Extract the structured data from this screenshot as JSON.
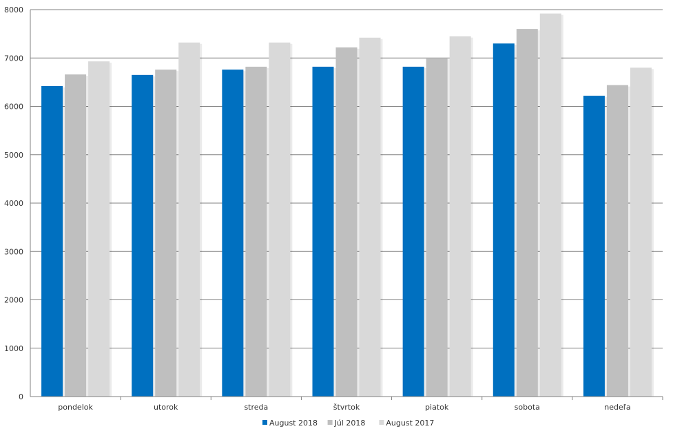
{
  "chart_data": {
    "type": "bar",
    "title": "",
    "xlabel": "",
    "ylabel": "",
    "categories": [
      "pondelok",
      "utorok",
      "streda",
      "štvrtok",
      "piatok",
      "sobota",
      "nedeľa"
    ],
    "series": [
      {
        "name": "August 2018",
        "color": "#0070c0",
        "values": [
          6420,
          6650,
          6760,
          6820,
          6820,
          7300,
          6220
        ]
      },
      {
        "name": "Júl 2018",
        "color": "#bfbfbf",
        "values": [
          6660,
          6760,
          6820,
          7220,
          7000,
          7600,
          6440
        ]
      },
      {
        "name": "August 2017",
        "color": "#d9d9d9",
        "values": [
          6930,
          7320,
          7320,
          7420,
          7450,
          7920,
          6800
        ]
      }
    ],
    "ylim": [
      0,
      8000
    ],
    "yticks": [
      "0",
      "1000",
      "2000",
      "3000",
      "4000",
      "5000",
      "6000",
      "7000",
      "8000"
    ],
    "grid": true,
    "legend_position": "bottom"
  }
}
